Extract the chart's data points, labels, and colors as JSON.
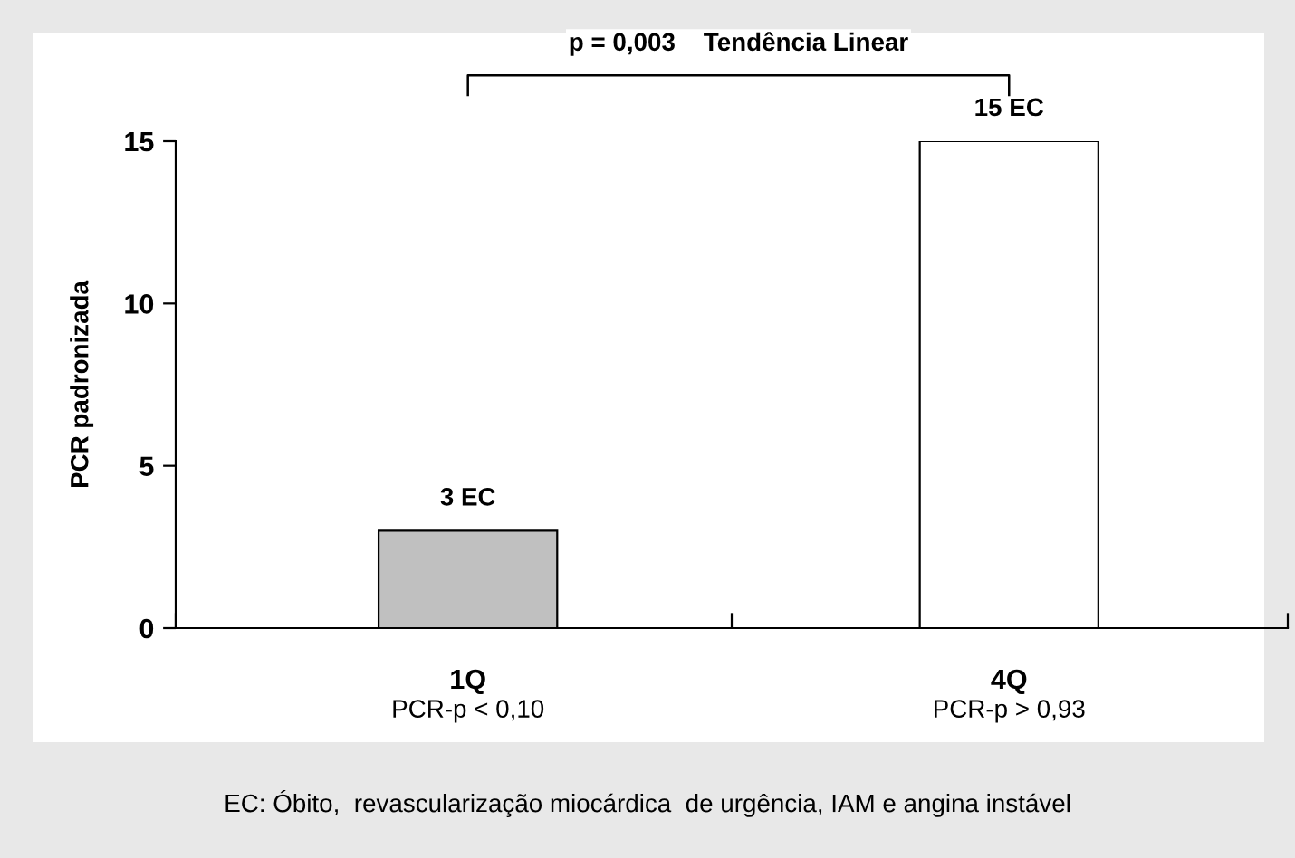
{
  "chart_data": {
    "type": "bar",
    "ylabel": "PCR padronizada",
    "categories": [
      "1Q",
      "4Q"
    ],
    "values": [
      3,
      15
    ],
    "colors": [
      "#c0c0c0",
      "#ffffff"
    ],
    "value_labels": [
      "3 EC",
      "15 EC"
    ],
    "ylim": [
      0,
      15
    ],
    "yticks": [
      0,
      5,
      10,
      15
    ],
    "grid": false,
    "annotations": [
      {
        "text": "p = 0,003    Tendência Linear"
      },
      "PCR-p < 0,10",
      "PCR-p > 0,93",
      {
        "text": "EC: Óbito,  revascularização miocárdica  de urgência, IAM e angina instável"
      }
    ]
  }
}
